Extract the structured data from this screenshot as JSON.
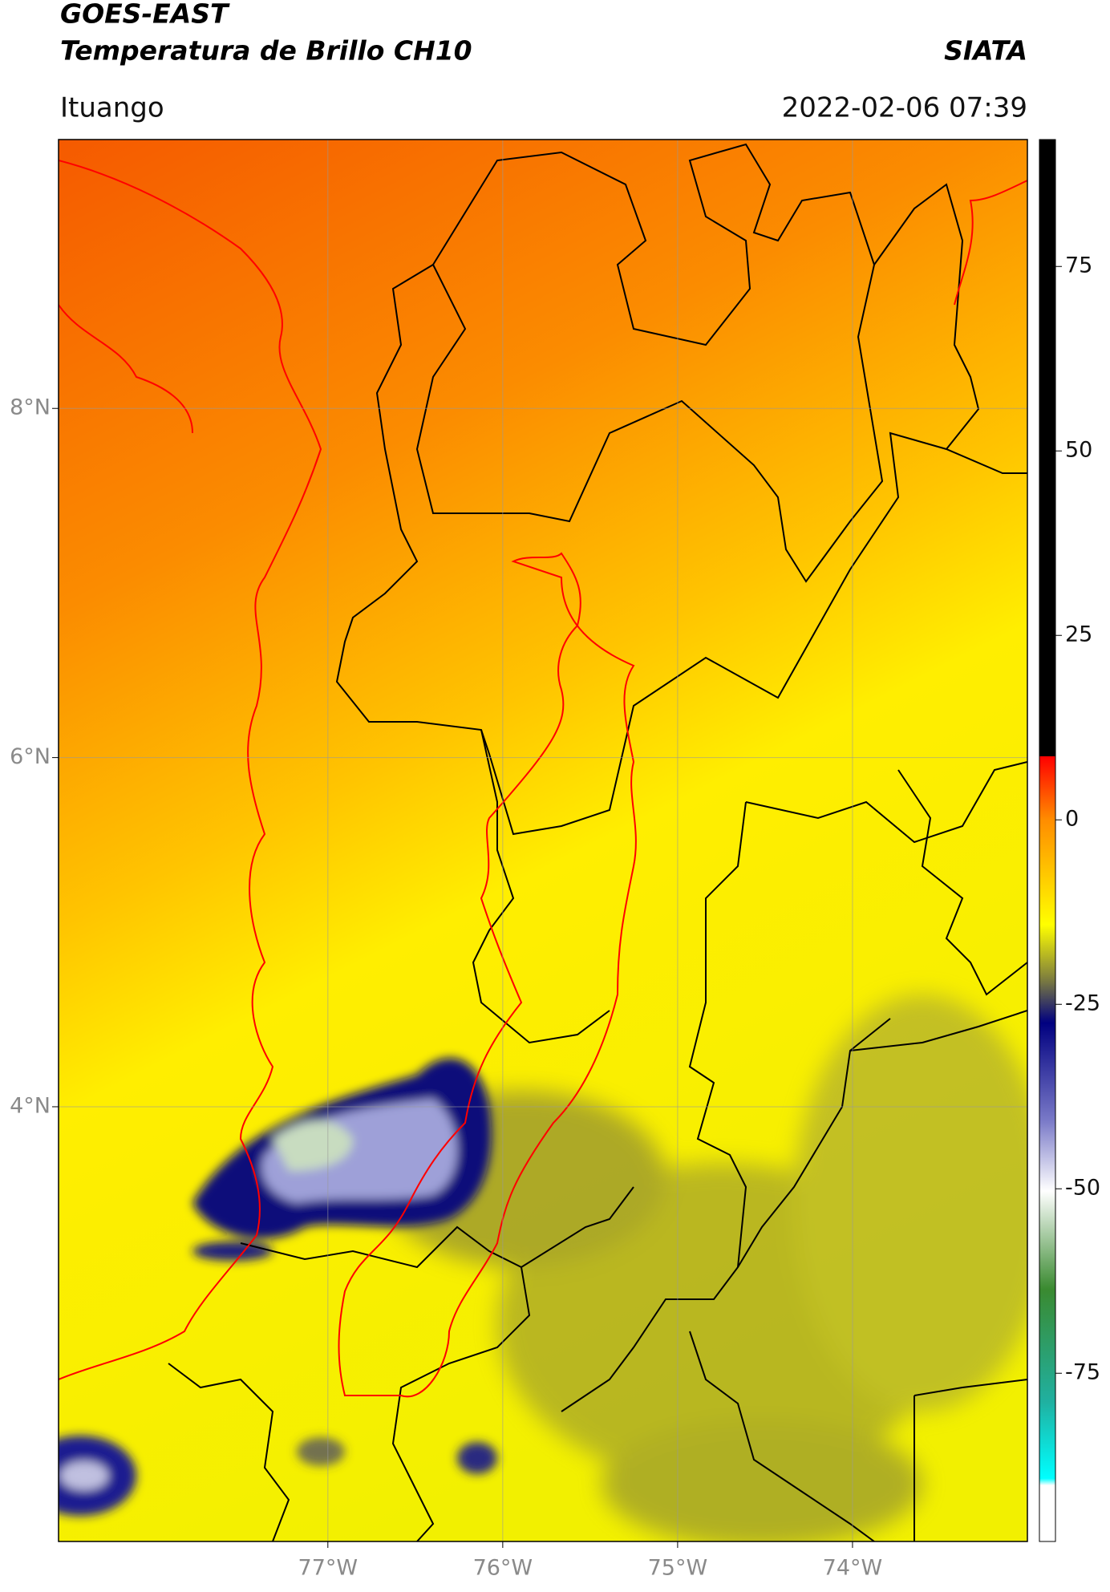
{
  "header": {
    "satellite": "GOES-EAST",
    "product": "Temperatura de Brillo CH10",
    "source": "SIATA",
    "location": "Ituango",
    "datetime": "2022-02-06 07:39"
  },
  "map": {
    "xlim": [
      -78.54,
      -73.0
    ],
    "ylim": [
      1.51,
      9.54
    ],
    "xticks": [
      {
        "value": -77,
        "label": "77°W"
      },
      {
        "value": -76,
        "label": "76°W"
      },
      {
        "value": -75,
        "label": "75°W"
      },
      {
        "value": -74,
        "label": "74°W"
      }
    ],
    "yticks": [
      {
        "value": 8,
        "label": "8°N"
      },
      {
        "value": 6,
        "label": "6°N"
      },
      {
        "value": 4,
        "label": "4°N"
      }
    ],
    "grid": true
  },
  "colorbar": {
    "lim": [
      -97.8,
      92.2
    ],
    "ticks": [
      75,
      50,
      25,
      0,
      -25,
      -50,
      -75
    ]
  }
}
